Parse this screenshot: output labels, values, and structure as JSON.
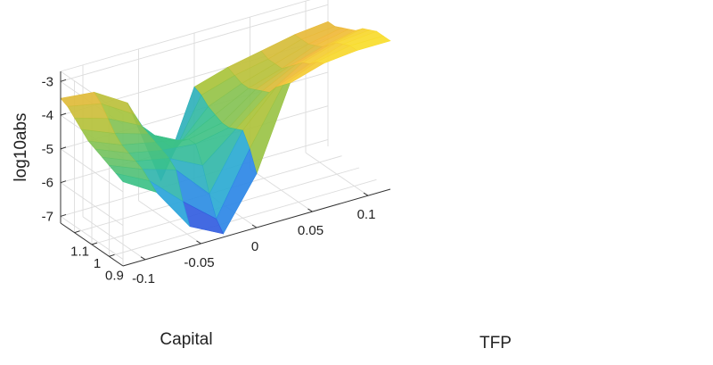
{
  "chart_data": {
    "type": "surface",
    "title": "",
    "xlabel": "TFP",
    "ylabel": "Capital",
    "zlabel": "log10abs",
    "xlim": [
      -0.12,
      0.12
    ],
    "ylim": [
      0.82,
      1.18
    ],
    "zlim": [
      -7.2,
      -2.7
    ],
    "xticks": [
      {
        "value": -0.1,
        "label": "-0.1"
      },
      {
        "value": -0.05,
        "label": "-0.05"
      },
      {
        "value": 0,
        "label": "0"
      },
      {
        "value": 0.05,
        "label": "0.05"
      },
      {
        "value": 0.1,
        "label": "0.1"
      }
    ],
    "yticks": [
      {
        "value": 0.9,
        "label": "0.9"
      },
      {
        "value": 1.0,
        "label": "1"
      },
      {
        "value": 1.1,
        "label": "1.1"
      }
    ],
    "zticks": [
      {
        "value": -7,
        "label": "-7"
      },
      {
        "value": -6,
        "label": "-6"
      },
      {
        "value": -5,
        "label": "-5"
      },
      {
        "value": -4,
        "label": "-4"
      },
      {
        "value": -3,
        "label": "-3"
      }
    ],
    "colormap": [
      "#3e26a8",
      "#2f6ef0",
      "#2aa8d8",
      "#39c18a",
      "#a9c33b",
      "#f0b93a",
      "#f9e22b"
    ],
    "grid": true,
    "surface": {
      "tfp": [
        -0.12,
        -0.09,
        -0.06,
        -0.03,
        0.0,
        0.03,
        0.06,
        0.09,
        0.12
      ],
      "capital": [
        1.18,
        1.14,
        1.1,
        1.06,
        1.02,
        0.98,
        0.94,
        0.9,
        0.86,
        0.82
      ],
      "log10abs": [
        [
          -3.5,
          -3.6,
          -4.2,
          -6.8,
          -4.3,
          -4.0,
          -3.8,
          -3.6,
          -3.5
        ],
        [
          -3.6,
          -3.8,
          -4.4,
          -6.2,
          -4.4,
          -4.1,
          -3.9,
          -3.6,
          -3.5
        ],
        [
          -3.8,
          -4.1,
          -4.6,
          -5.6,
          -4.6,
          -4.2,
          -3.9,
          -3.6,
          -3.4
        ],
        [
          -4.0,
          -4.4,
          -4.7,
          -5.2,
          -4.7,
          -4.2,
          -3.9,
          -3.5,
          -3.3
        ],
        [
          -4.2,
          -4.6,
          -4.8,
          -5.0,
          -4.8,
          -4.1,
          -3.7,
          -3.4,
          -3.2
        ],
        [
          -4.3,
          -4.7,
          -4.9,
          -5.0,
          -4.8,
          -4.0,
          -3.5,
          -3.2,
          -3.0
        ],
        [
          -4.4,
          -4.8,
          -5.0,
          -5.5,
          -4.7,
          -3.9,
          -3.3,
          -3.0,
          -2.9
        ],
        [
          -4.5,
          -4.9,
          -5.2,
          -6.2,
          -4.6,
          -3.6,
          -3.2,
          -2.9,
          -2.8
        ],
        [
          -4.6,
          -5.1,
          -6.0,
          -6.8,
          -5.0,
          -3.4,
          -3.0,
          -2.8,
          -2.8
        ],
        [
          -4.7,
          -5.3,
          -6.6,
          -7.1,
          -5.6,
          -3.2,
          -2.9,
          -2.8,
          -2.8
        ]
      ]
    }
  }
}
